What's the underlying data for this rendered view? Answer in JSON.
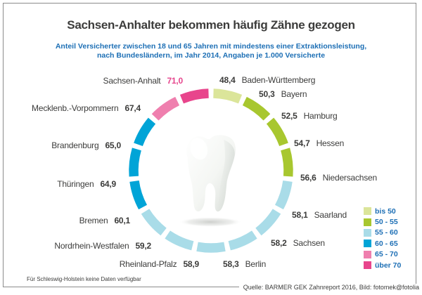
{
  "title": "Sachsen-Anhalter bekommen häufig Zähne gezogen",
  "subtitle": {
    "line1": "Anteil Versicherter zwischen 18 und 65 Jahren mit mindestens einer Extraktionsleistung,",
    "line2": "nach Bundesländern, im Jahr 2014, Angaben je 1.000 Versicherte"
  },
  "footnote": "Für Schleswig-Holstein keine Daten verfügbar",
  "source": "Quelle: BARMER GEK Zahnreport 2016, Bild: fotomek@fotolia",
  "colors": {
    "text_dark": "#3c3c3b",
    "heading_blue": "#1d6fb5",
    "highlight_magenta": "#e6468d",
    "frame_gray": "#8b8b8b"
  },
  "legend": {
    "items": [
      {
        "label": "bis 50",
        "color": "#dbe59a"
      },
      {
        "label": "50 - 55",
        "color": "#a8c72f"
      },
      {
        "label": "55 - 60",
        "color": "#a9dce8"
      },
      {
        "label": "60 - 65",
        "color": "#00a4d7"
      },
      {
        "label": "65 - 70",
        "color": "#ef7fae"
      },
      {
        "label": "über 70",
        "color": "#e8458c"
      }
    ]
  },
  "chart_data": {
    "type": "pie",
    "subtype": "segmented-donut-ring",
    "title": "Sachsen-Anhalter bekommen häufig Zähne gezogen",
    "unit": "Versicherte mit mindestens einer Extraktionsleistung je 1.000 Versicherte",
    "year_shown": "2014",
    "center_image": "tooth (molar) illustration",
    "legend_position": "right-bottom",
    "buckets": [
      "bis 50",
      "50 - 55",
      "55 - 60",
      "60 - 65",
      "65 - 70",
      "über 70"
    ],
    "segments_clockwise_from_top": [
      {
        "state": "Baden-Württemberg",
        "value": 48.4,
        "display": "48,4",
        "bucket": "bis 50"
      },
      {
        "state": "Bayern",
        "value": 50.3,
        "display": "50,3",
        "bucket": "50 - 55"
      },
      {
        "state": "Hamburg",
        "value": 52.5,
        "display": "52,5",
        "bucket": "50 - 55"
      },
      {
        "state": "Hessen",
        "value": 54.7,
        "display": "54,7",
        "bucket": "50 - 55"
      },
      {
        "state": "Niedersachsen",
        "value": 56.6,
        "display": "56,6",
        "bucket": "55 - 60"
      },
      {
        "state": "Saarland",
        "value": 58.1,
        "display": "58,1",
        "bucket": "55 - 60"
      },
      {
        "state": "Sachsen",
        "value": 58.2,
        "display": "58,2",
        "bucket": "55 - 60"
      },
      {
        "state": "Berlin",
        "value": 58.3,
        "display": "58,3",
        "bucket": "55 - 60"
      },
      {
        "state": "Rheinland-Pfalz",
        "value": 58.9,
        "display": "58,9",
        "bucket": "55 - 60"
      },
      {
        "state": "Nordrhein-Westfalen",
        "value": 59.2,
        "display": "59,2",
        "bucket": "55 - 60"
      },
      {
        "state": "Bremen",
        "value": 60.1,
        "display": "60,1",
        "bucket": "60 - 65"
      },
      {
        "state": "Thüringen",
        "value": 64.9,
        "display": "64,9",
        "bucket": "60 - 65"
      },
      {
        "state": "Brandenburg",
        "value": 65.0,
        "display": "65,0",
        "bucket": "60 - 65"
      },
      {
        "state": "Mecklenb.-Vorpommern",
        "value": 67.4,
        "display": "67,4",
        "bucket": "65 - 70"
      },
      {
        "state": "Sachsen-Anhalt",
        "value": 71.0,
        "display": "71,0",
        "bucket": "über 70",
        "highlighted": true
      }
    ],
    "missing_data_note": "Für Schleswig-Holstein keine Daten verfügbar"
  }
}
